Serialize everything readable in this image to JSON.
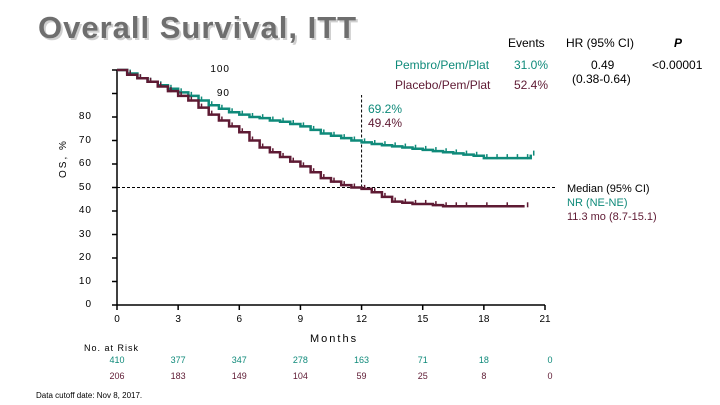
{
  "title": "Overall Survival, ITT",
  "table_header": {
    "events": "Events",
    "hr": "HR (95% CI)",
    "p": "P"
  },
  "rows": [
    {
      "arm": "Pembro/Pem/Plat",
      "events": "31.0%",
      "color": "#0f8a7a"
    },
    {
      "arm": "Placebo/Pem/Plat",
      "events": "52.4%",
      "color": "#5e1a33"
    }
  ],
  "hr_value": "0.49",
  "hr_ci": "(0.38-0.64)",
  "p_value": "<0.00001",
  "annotation_12mo": {
    "pembro": "69.2%",
    "placebo": "49.4%"
  },
  "median": {
    "label": "Median (95% CI)",
    "pembro": "NR (NE-NE)",
    "placebo": "11.3 mo (8.7-15.1)"
  },
  "risk_label": "No. at Risk",
  "footnote": "Data cutoff date: Nov 8, 2017.",
  "chart_data": {
    "type": "line",
    "xlabel": "Months",
    "ylabel": "OS, %",
    "xlim": [
      0,
      21
    ],
    "ylim": [
      0,
      100
    ],
    "x_ticks": [
      0,
      3,
      6,
      9,
      12,
      15,
      18,
      21
    ],
    "y_ticks": [
      0,
      10,
      20,
      30,
      40,
      50,
      60,
      70,
      80,
      90,
      100
    ],
    "reference_lines": {
      "y": 50,
      "x": 12
    },
    "series": [
      {
        "name": "Pembro/Pem/Plat",
        "color": "#0f8a7a",
        "points": [
          [
            0,
            100
          ],
          [
            0.5,
            98.5
          ],
          [
            1,
            96.5
          ],
          [
            1.5,
            95
          ],
          [
            2,
            93.5
          ],
          [
            2.5,
            92
          ],
          [
            3,
            90.5
          ],
          [
            3.5,
            89
          ],
          [
            4,
            87
          ],
          [
            4.5,
            85
          ],
          [
            5,
            83.5
          ],
          [
            5.5,
            82
          ],
          [
            6,
            81
          ],
          [
            6.5,
            80
          ],
          [
            7,
            79.5
          ],
          [
            7.5,
            78.5
          ],
          [
            8,
            78
          ],
          [
            8.5,
            77
          ],
          [
            9,
            76
          ],
          [
            9.5,
            74.5
          ],
          [
            10,
            73
          ],
          [
            10.5,
            72
          ],
          [
            11,
            71
          ],
          [
            11.5,
            70
          ],
          [
            12,
            69.2
          ],
          [
            12.5,
            68.5
          ],
          [
            13,
            68
          ],
          [
            13.5,
            67.5
          ],
          [
            14,
            67
          ],
          [
            14.5,
            66.5
          ],
          [
            15,
            66
          ],
          [
            15.5,
            65.5
          ],
          [
            16,
            65
          ],
          [
            16.5,
            64.5
          ],
          [
            17,
            64
          ],
          [
            17.5,
            63.5
          ],
          [
            18,
            62.5
          ],
          [
            18.5,
            62.5
          ],
          [
            19,
            62.5
          ],
          [
            19.5,
            62.5
          ],
          [
            20,
            62.5
          ],
          [
            20.3,
            64
          ]
        ]
      },
      {
        "name": "Placebo/Pem/Plat",
        "color": "#5e1a33",
        "points": [
          [
            0,
            100
          ],
          [
            0.5,
            98
          ],
          [
            1,
            96.5
          ],
          [
            1.5,
            95
          ],
          [
            2,
            93
          ],
          [
            2.5,
            91
          ],
          [
            3,
            89
          ],
          [
            3.5,
            87
          ],
          [
            4,
            84
          ],
          [
            4.5,
            81
          ],
          [
            5,
            78.5
          ],
          [
            5.5,
            76
          ],
          [
            6,
            73.5
          ],
          [
            6.5,
            70
          ],
          [
            7,
            67
          ],
          [
            7.5,
            65
          ],
          [
            8,
            63
          ],
          [
            8.5,
            61
          ],
          [
            9,
            59
          ],
          [
            9.5,
            56.5
          ],
          [
            10,
            54
          ],
          [
            10.5,
            52.5
          ],
          [
            11,
            51
          ],
          [
            11.5,
            50
          ],
          [
            12,
            49.4
          ],
          [
            12.5,
            48
          ],
          [
            13,
            46
          ],
          [
            13.5,
            44
          ],
          [
            14,
            43.5
          ],
          [
            14.5,
            43
          ],
          [
            15,
            43
          ],
          [
            15.5,
            42.5
          ],
          [
            16,
            42
          ],
          [
            16.5,
            42
          ],
          [
            17,
            42
          ],
          [
            18,
            42
          ],
          [
            19,
            42
          ],
          [
            20,
            42
          ]
        ]
      }
    ],
    "risk_table": {
      "x": [
        0,
        3,
        6,
        9,
        12,
        15,
        18,
        21
      ],
      "pembro": [
        410,
        377,
        347,
        278,
        163,
        71,
        18,
        0
      ],
      "placebo": [
        206,
        183,
        149,
        104,
        59,
        25,
        8,
        0
      ]
    }
  }
}
